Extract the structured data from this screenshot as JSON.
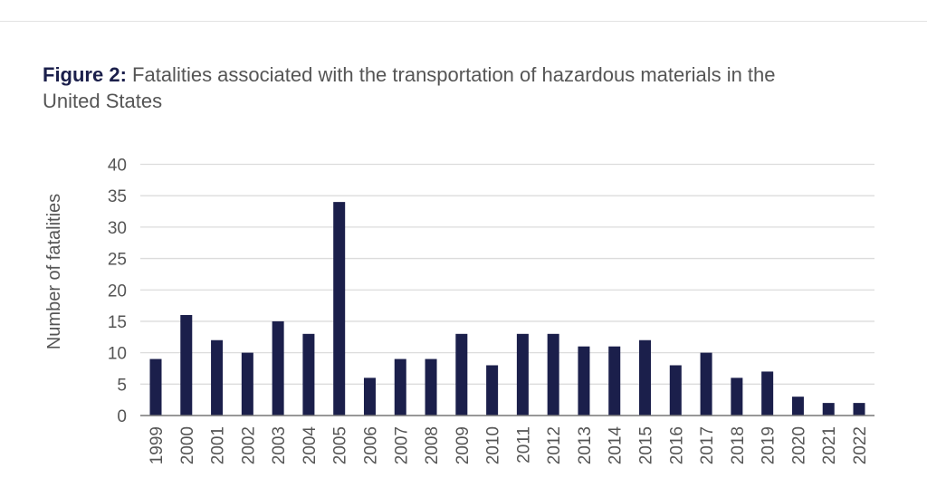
{
  "figure_label": "Figure 2:",
  "chart_data": {
    "type": "bar",
    "title": "Fatalities associated with the transportation of hazardous materials in the United States",
    "xlabel": "",
    "ylabel": "Number of fatalities",
    "ylim": [
      0,
      40
    ],
    "yticks": [
      "0",
      "5",
      "10",
      "15",
      "20",
      "25",
      "30",
      "35",
      "40"
    ],
    "grid": true,
    "color": "#1b1f4b",
    "categories": [
      "1999",
      "2000",
      "2001",
      "2002",
      "2003",
      "2004",
      "2005",
      "2006",
      "2007",
      "2008",
      "2009",
      "2010",
      "2011",
      "2012",
      "2013",
      "2014",
      "2015",
      "2016",
      "2017",
      "2018",
      "2019",
      "2020",
      "2021",
      "2022"
    ],
    "values": [
      9,
      16,
      12,
      10,
      15,
      13,
      34,
      6,
      9,
      9,
      13,
      8,
      13,
      13,
      11,
      11,
      12,
      8,
      10,
      6,
      7,
      3,
      2,
      2
    ]
  }
}
